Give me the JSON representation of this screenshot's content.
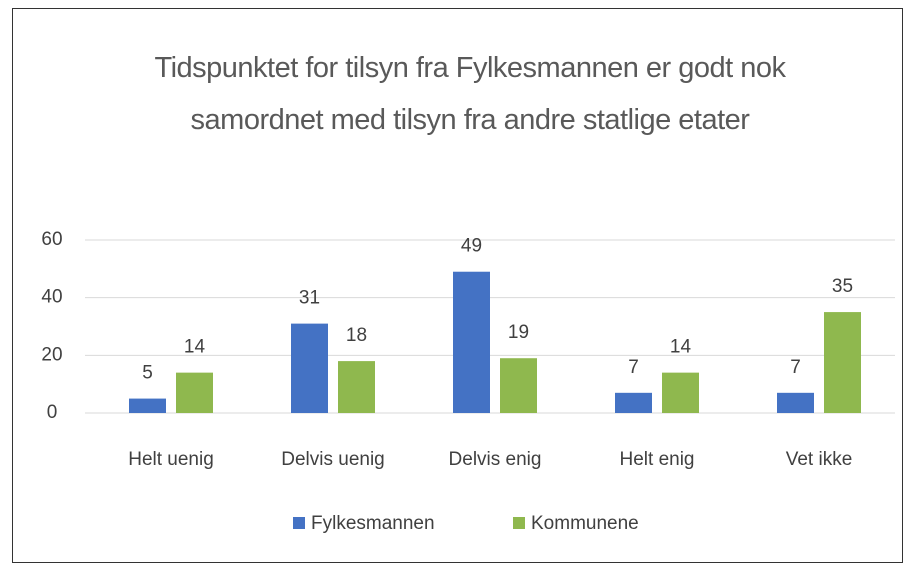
{
  "chart_data": {
    "type": "bar",
    "title": "Tidspunktet for tilsyn fra Fylkesmannen er godt nok samordnet med tilsyn fra andre statlige etater",
    "categories": [
      "Helt uenig",
      "Delvis uenig",
      "Delvis enig",
      "Helt enig",
      "Vet ikke"
    ],
    "series": [
      {
        "name": "Fylkesmannen",
        "color": "#4472c4",
        "values": [
          5,
          31,
          49,
          7,
          7
        ]
      },
      {
        "name": "Kommunene",
        "color": "#8fb84e",
        "values": [
          14,
          18,
          19,
          14,
          35
        ]
      }
    ],
    "ylim": [
      0,
      60
    ],
    "yticks": [
      0,
      20,
      40,
      60
    ],
    "grid": true,
    "legend": "bottom"
  }
}
